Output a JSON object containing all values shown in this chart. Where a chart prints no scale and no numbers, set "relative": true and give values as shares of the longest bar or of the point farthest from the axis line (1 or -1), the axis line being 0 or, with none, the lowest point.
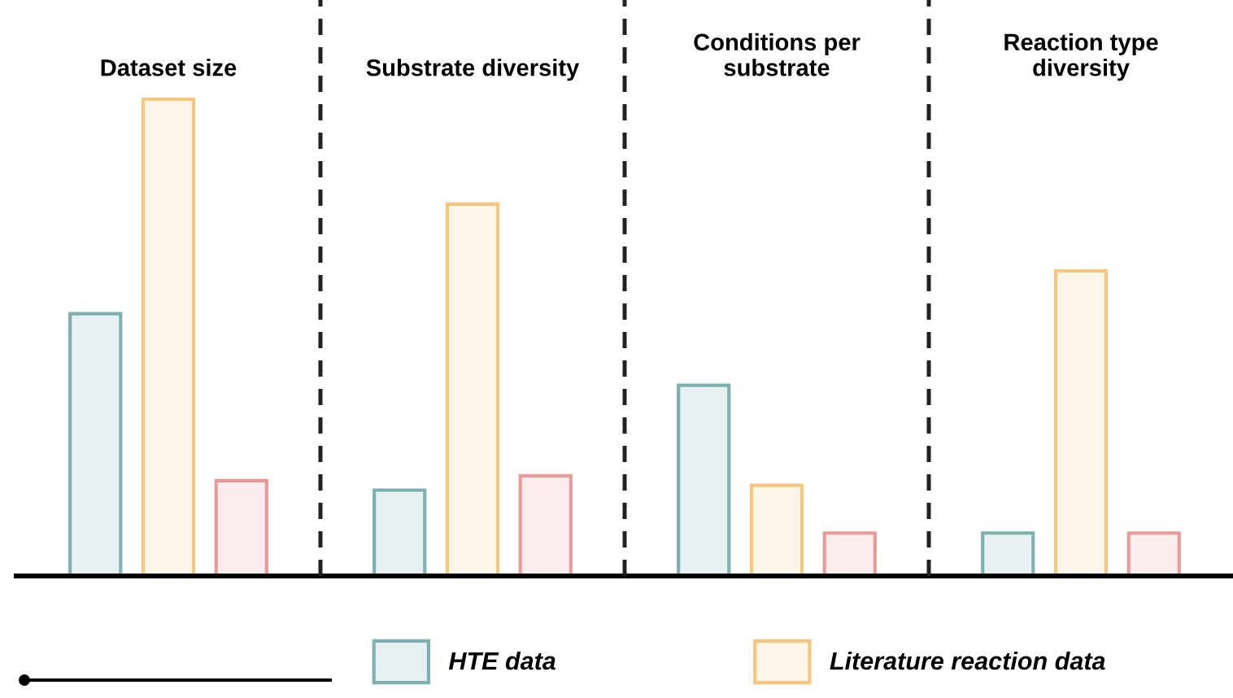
{
  "chart_data": {
    "type": "bar",
    "categories": [
      "Dataset size",
      "Substrate diversity",
      "Conditions per\nsubstrate",
      "Reaction type\ndiversity"
    ],
    "relative": true,
    "legend": "bottom",
    "series": [
      {
        "name": "HTE data",
        "color": "#7fb0b0",
        "values": [
          0.55,
          0.18,
          0.4,
          0.09
        ]
      },
      {
        "name": "Literature reaction data",
        "color": "#f5c77e",
        "values": [
          1.0,
          0.78,
          0.19,
          0.64
        ]
      },
      {
        "color": "#e89a9a",
        "values": [
          0.2,
          0.21,
          0.09,
          0.09
        ]
      }
    ]
  }
}
